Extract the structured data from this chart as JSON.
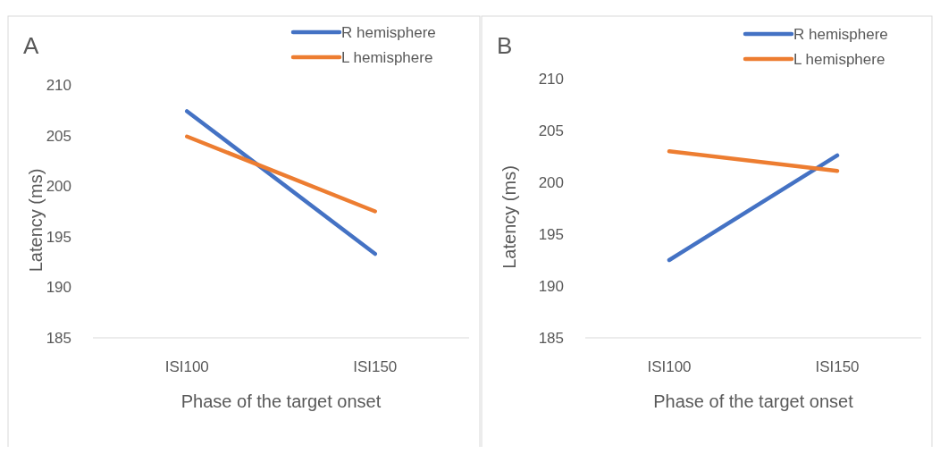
{
  "chart_data": [
    {
      "type": "line",
      "title": "A",
      "xlabel": "Phase of the target onset",
      "ylabel": "Latency (ms)",
      "categories": [
        "ISI100",
        "ISI150"
      ],
      "ylim": [
        185,
        210
      ],
      "yticks": [
        185,
        190,
        195,
        200,
        205,
        210
      ],
      "grid": false,
      "legend": "top right",
      "marker": "none",
      "series": [
        {
          "name": "R hemisphere",
          "color": "#4472c4",
          "values": [
            207.4,
            193.3
          ]
        },
        {
          "name": "L hemisphere",
          "color": "#ed7d31",
          "values": [
            204.9,
            197.5
          ]
        }
      ]
    },
    {
      "type": "line",
      "title": "B",
      "xlabel": "Phase of the target onset",
      "ylabel": "Latency (ms)",
      "categories": [
        "ISI100",
        "ISI150"
      ],
      "ylim": [
        185,
        210
      ],
      "yticks": [
        185,
        190,
        195,
        200,
        205,
        210
      ],
      "grid": false,
      "legend": "top right",
      "marker": "none",
      "series": [
        {
          "name": "R hemisphere",
          "color": "#4472c4",
          "values": [
            192.5,
            202.6
          ]
        },
        {
          "name": "L hemisphere",
          "color": "#ed7d31",
          "values": [
            203.0,
            201.1
          ]
        }
      ]
    }
  ]
}
